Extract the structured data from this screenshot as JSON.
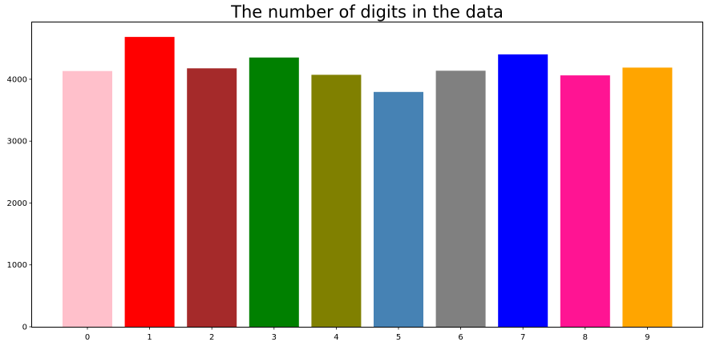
{
  "chart_data": {
    "type": "bar",
    "title": "The number of digits in the data",
    "xlabel": "",
    "ylabel": "",
    "categories": [
      "0",
      "1",
      "2",
      "3",
      "4",
      "5",
      "6",
      "7",
      "8",
      "9"
    ],
    "values": [
      4132,
      4684,
      4177,
      4351,
      4072,
      3795,
      4137,
      4401,
      4063,
      4188
    ],
    "colors": [
      "#ffc0cb",
      "#ff0000",
      "#a52a2a",
      "#008000",
      "#808000",
      "#4682b4",
      "#808080",
      "#0000ff",
      "#ff1493",
      "#ffa500"
    ],
    "ylim": [
      0,
      4918
    ],
    "yticks": [
      0,
      1000,
      2000,
      3000,
      4000
    ],
    "ytick_labels": [
      "0",
      "1000",
      "2000",
      "3000",
      "4000"
    ],
    "grid": false,
    "legend": "none"
  }
}
